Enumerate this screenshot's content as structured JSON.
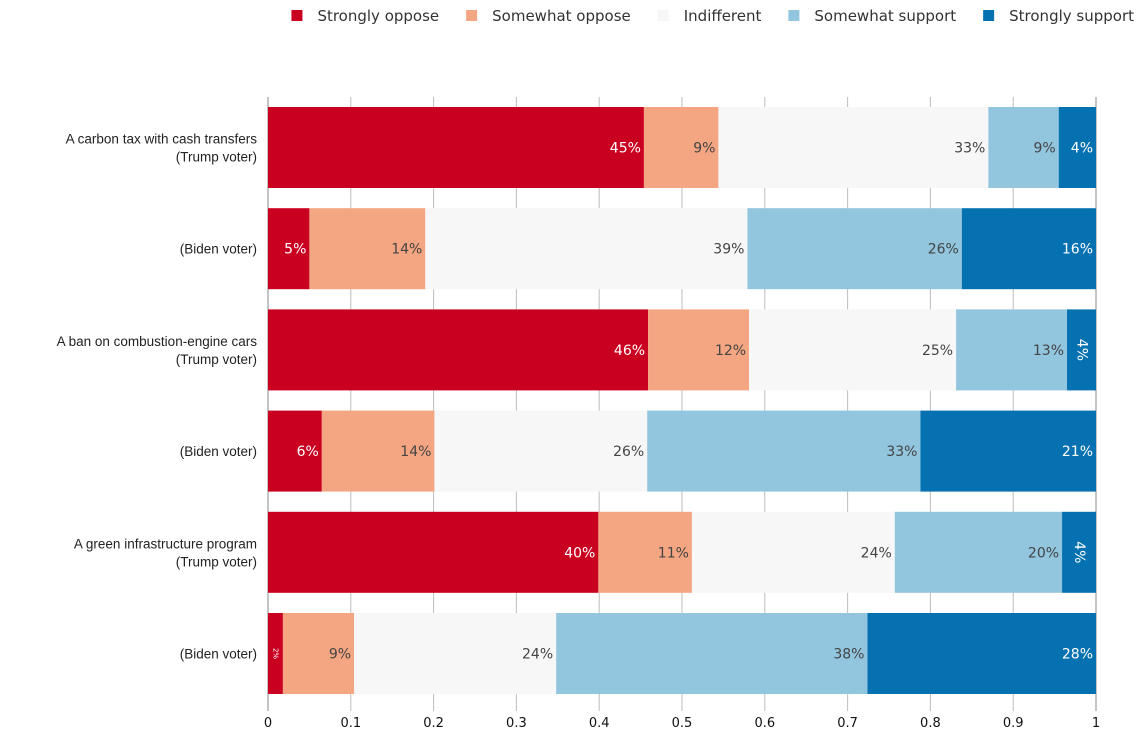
{
  "chart_data": {
    "type": "bar",
    "orientation": "horizontal",
    "stacked": true,
    "xlim": [
      0,
      1
    ],
    "x_ticks": [
      "0",
      "0.1",
      "0.2",
      "0.3",
      "0.4",
      "0.5",
      "0.6",
      "0.7",
      "0.8",
      "0.9",
      "1"
    ],
    "grid": true,
    "legend_position": "top",
    "categories": [
      [
        "A carbon tax with cash transfers",
        "(Trump voter)"
      ],
      [
        "(Biden voter)"
      ],
      [
        "A ban on combustion-engine cars",
        "(Trump voter)"
      ],
      [
        "(Biden voter)"
      ],
      [
        "A green infrastructure program",
        "(Trump voter)"
      ],
      [
        "(Biden voter)"
      ]
    ],
    "series": [
      {
        "name": "Strongly oppose",
        "color": "#ca0020",
        "text_color": "#ffffff",
        "values": [
          0.454,
          0.05,
          0.459,
          0.065,
          0.399,
          0.018
        ],
        "labels": [
          "45%",
          "5%",
          "46%",
          "6%",
          "40%",
          "2%"
        ]
      },
      {
        "name": "Somewhat oppose",
        "color": "#f4a582",
        "text_color": "#444444",
        "values": [
          0.09,
          0.14,
          0.122,
          0.136,
          0.113,
          0.086
        ],
        "labels": [
          "9%",
          "14%",
          "12%",
          "14%",
          "11%",
          "9%"
        ]
      },
      {
        "name": "Indifferent",
        "color": "#f7f7f7",
        "text_color": "#444444",
        "values": [
          0.326,
          0.389,
          0.25,
          0.257,
          0.245,
          0.244
        ],
        "labels": [
          "33%",
          "39%",
          "25%",
          "26%",
          "24%",
          "24%"
        ]
      },
      {
        "name": "Somewhat support",
        "color": "#92c5de",
        "text_color": "#444444",
        "values": [
          0.085,
          0.259,
          0.134,
          0.33,
          0.202,
          0.376
        ],
        "labels": [
          "9%",
          "26%",
          "13%",
          "33%",
          "20%",
          "38%"
        ]
      },
      {
        "name": "Strongly support",
        "color": "#0571b0",
        "text_color": "#ffffff",
        "values": [
          0.045,
          0.162,
          0.035,
          0.212,
          0.041,
          0.276
        ],
        "labels": [
          "4%",
          "16%",
          "4%",
          "21%",
          "4%",
          "28%"
        ]
      }
    ]
  }
}
